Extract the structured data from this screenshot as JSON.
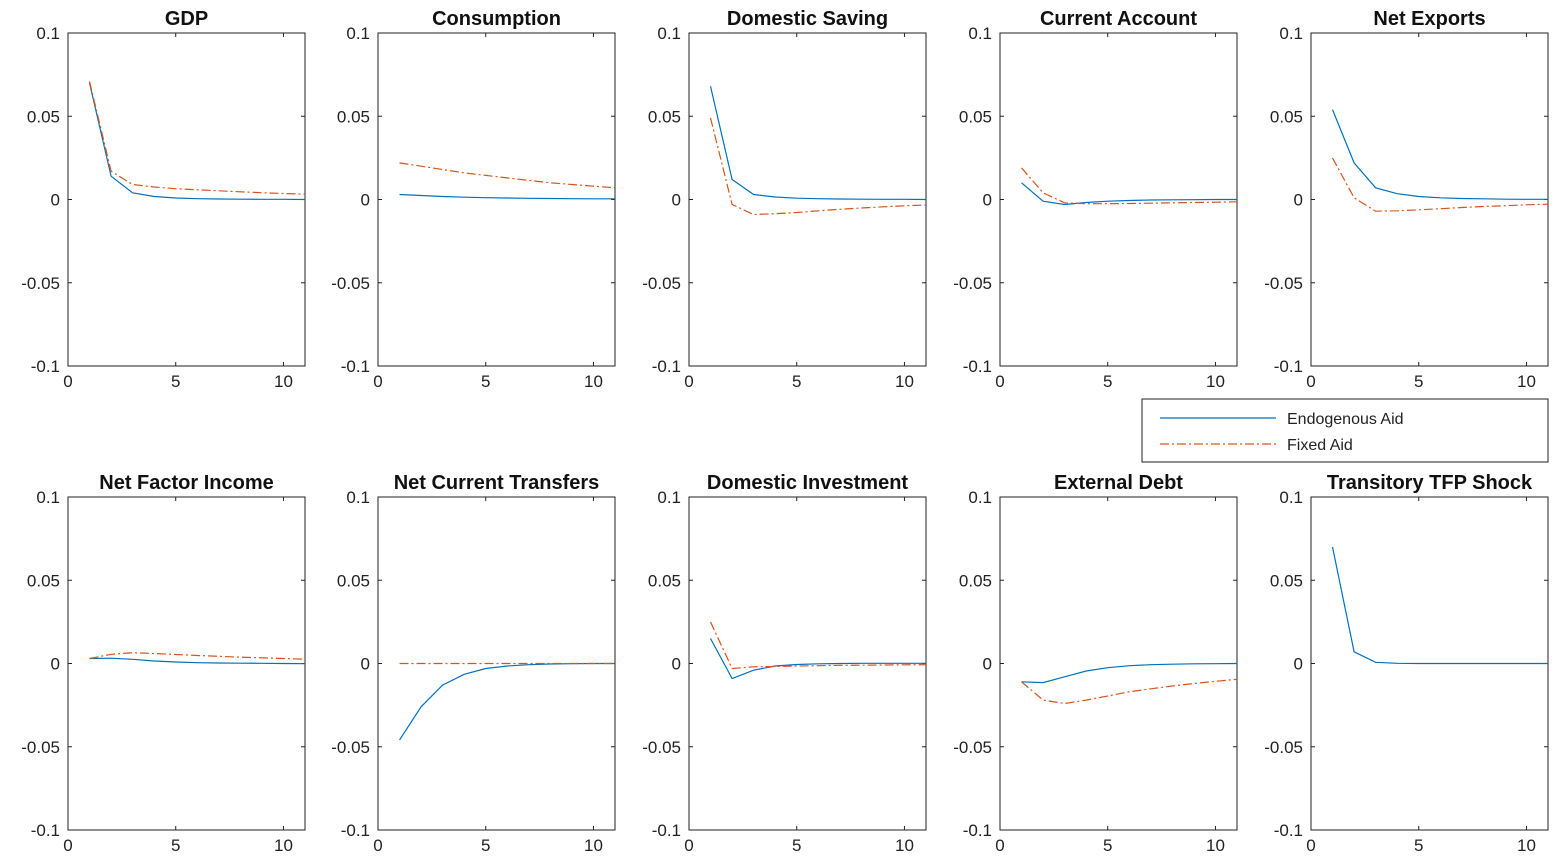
{
  "chart_data": [
    {
      "type": "line",
      "title": "GDP",
      "x": [
        1,
        2,
        3,
        4,
        5,
        6,
        7,
        8,
        9,
        10,
        11
      ],
      "xlim": [
        0,
        11
      ],
      "ylim": [
        -0.1,
        0.1
      ],
      "xticks": [
        0,
        5,
        10
      ],
      "yticks": [
        0.1,
        0.05,
        0,
        -0.05,
        -0.1
      ],
      "xtick_labels": [
        "0",
        "5",
        "10"
      ],
      "ytick_labels": [
        "0.1",
        "0.05",
        "0",
        "-0.05",
        "-0.1"
      ],
      "series": [
        {
          "name": "Endogenous Aid",
          "values": [
            0.07,
            0.014,
            0.004,
            0.0018,
            0.0009,
            0.0005,
            0.0003,
            0.0002,
            0.0001,
            0.0001,
            0.0
          ]
        },
        {
          "name": "Fixed Aid",
          "values": [
            0.071,
            0.017,
            0.009,
            0.0075,
            0.0065,
            0.0058,
            0.0052,
            0.0046,
            0.0041,
            0.0036,
            0.0032
          ]
        }
      ]
    },
    {
      "type": "line",
      "title": "Consumption",
      "x": [
        1,
        2,
        3,
        4,
        5,
        6,
        7,
        8,
        9,
        10,
        11
      ],
      "xlim": [
        0,
        11
      ],
      "ylim": [
        -0.1,
        0.1
      ],
      "xticks": [
        0,
        5,
        10
      ],
      "yticks": [
        0.1,
        0.05,
        0,
        -0.05,
        -0.1
      ],
      "xtick_labels": [
        "0",
        "5",
        "10"
      ],
      "ytick_labels": [
        "0.1",
        "0.05",
        "0",
        "-0.05",
        "-0.1"
      ],
      "series": [
        {
          "name": "Endogenous Aid",
          "values": [
            0.003,
            0.0024,
            0.0018,
            0.0014,
            0.0011,
            0.0009,
            0.0007,
            0.0006,
            0.0005,
            0.0004,
            0.0004
          ]
        },
        {
          "name": "Fixed Aid",
          "values": [
            0.022,
            0.02,
            0.018,
            0.016,
            0.0145,
            0.013,
            0.0115,
            0.01,
            0.009,
            0.008,
            0.007
          ]
        }
      ]
    },
    {
      "type": "line",
      "title": "Domestic Saving",
      "x": [
        1,
        2,
        3,
        4,
        5,
        6,
        7,
        8,
        9,
        10,
        11
      ],
      "xlim": [
        0,
        11
      ],
      "ylim": [
        -0.1,
        0.1
      ],
      "xticks": [
        0,
        5,
        10
      ],
      "yticks": [
        0.1,
        0.05,
        0,
        -0.05,
        -0.1
      ],
      "xtick_labels": [
        "0",
        "5",
        "10"
      ],
      "ytick_labels": [
        "0.1",
        "0.05",
        "0",
        "-0.05",
        "-0.1"
      ],
      "series": [
        {
          "name": "Endogenous Aid",
          "values": [
            0.068,
            0.012,
            0.003,
            0.0015,
            0.0008,
            0.0005,
            0.0003,
            0.0002,
            0.0001,
            0.0001,
            0.0
          ]
        },
        {
          "name": "Fixed Aid",
          "values": [
            0.049,
            -0.003,
            -0.009,
            -0.0085,
            -0.0078,
            -0.0068,
            -0.0059,
            -0.0051,
            -0.0044,
            -0.0038,
            -0.0033
          ]
        }
      ]
    },
    {
      "type": "line",
      "title": "Current Account",
      "x": [
        1,
        2,
        3,
        4,
        5,
        6,
        7,
        8,
        9,
        10,
        11
      ],
      "xlim": [
        0,
        11
      ],
      "ylim": [
        -0.1,
        0.1
      ],
      "xticks": [
        0,
        5,
        10
      ],
      "yticks": [
        0.1,
        0.05,
        0,
        -0.05,
        -0.1
      ],
      "xtick_labels": [
        "0",
        "5",
        "10"
      ],
      "ytick_labels": [
        "0.1",
        "0.05",
        "0",
        "-0.05",
        "-0.1"
      ],
      "series": [
        {
          "name": "Endogenous Aid",
          "values": [
            0.01,
            -0.001,
            -0.003,
            -0.0018,
            -0.001,
            -0.0006,
            -0.0003,
            -0.0002,
            -0.0001,
            0.0,
            0.0
          ]
        },
        {
          "name": "Fixed Aid",
          "values": [
            0.019,
            0.004,
            -0.002,
            -0.0025,
            -0.0025,
            -0.0024,
            -0.0022,
            -0.002,
            -0.0018,
            -0.0016,
            -0.0014
          ]
        }
      ]
    },
    {
      "type": "line",
      "title": "Net Exports",
      "x": [
        1,
        2,
        3,
        4,
        5,
        6,
        7,
        8,
        9,
        10,
        11
      ],
      "xlim": [
        0,
        11
      ],
      "ylim": [
        -0.1,
        0.1
      ],
      "xticks": [
        0,
        5,
        10
      ],
      "yticks": [
        0.1,
        0.05,
        0,
        -0.05,
        -0.1
      ],
      "xtick_labels": [
        "0",
        "5",
        "10"
      ],
      "ytick_labels": [
        "0.1",
        "0.05",
        "0",
        "-0.05",
        "-0.1"
      ],
      "series": [
        {
          "name": "Endogenous Aid",
          "values": [
            0.054,
            0.022,
            0.007,
            0.0035,
            0.0018,
            0.001,
            0.0006,
            0.0004,
            0.0002,
            0.0001,
            0.0001
          ]
        },
        {
          "name": "Fixed Aid",
          "values": [
            0.025,
            0.001,
            -0.007,
            -0.0068,
            -0.0062,
            -0.0055,
            -0.0048,
            -0.0042,
            -0.0037,
            -0.0032,
            -0.0028
          ]
        }
      ]
    },
    {
      "type": "line",
      "title": "Net Factor Income",
      "x": [
        1,
        2,
        3,
        4,
        5,
        6,
        7,
        8,
        9,
        10,
        11
      ],
      "xlim": [
        0,
        11
      ],
      "ylim": [
        -0.1,
        0.1
      ],
      "xticks": [
        0,
        5,
        10
      ],
      "yticks": [
        0.1,
        0.05,
        0,
        -0.05,
        -0.1
      ],
      "xtick_labels": [
        "0",
        "5",
        "10"
      ],
      "ytick_labels": [
        "0.1",
        "0.05",
        "0",
        "-0.05",
        "-0.1"
      ],
      "series": [
        {
          "name": "Endogenous Aid",
          "values": [
            0.003,
            0.0032,
            0.0025,
            0.0015,
            0.0009,
            0.0005,
            0.0003,
            0.0002,
            0.0001,
            0.0,
            -0.0001
          ]
        },
        {
          "name": "Fixed Aid",
          "values": [
            0.003,
            0.0055,
            0.0065,
            0.006,
            0.0054,
            0.0048,
            0.0043,
            0.0038,
            0.0034,
            0.003,
            0.0026
          ]
        }
      ]
    },
    {
      "type": "line",
      "title": "Net Current Transfers",
      "x": [
        1,
        2,
        3,
        4,
        5,
        6,
        7,
        8,
        9,
        10,
        11
      ],
      "xlim": [
        0,
        11
      ],
      "ylim": [
        -0.1,
        0.1
      ],
      "xticks": [
        0,
        5,
        10
      ],
      "yticks": [
        0.1,
        0.05,
        0,
        -0.05,
        -0.1
      ],
      "xtick_labels": [
        "0",
        "5",
        "10"
      ],
      "ytick_labels": [
        "0.1",
        "0.05",
        "0",
        "-0.05",
        "-0.1"
      ],
      "series": [
        {
          "name": "Endogenous Aid",
          "values": [
            -0.046,
            -0.026,
            -0.013,
            -0.0065,
            -0.003,
            -0.0015,
            -0.0007,
            -0.0003,
            -0.0001,
            0.0,
            0.0
          ]
        },
        {
          "name": "Fixed Aid",
          "values": [
            0.0,
            0.0,
            0.0,
            0.0,
            0.0,
            0.0,
            0.0,
            0.0,
            0.0,
            0.0,
            0.0
          ]
        }
      ]
    },
    {
      "type": "line",
      "title": "Domestic Investment",
      "x": [
        1,
        2,
        3,
        4,
        5,
        6,
        7,
        8,
        9,
        10,
        11
      ],
      "xlim": [
        0,
        11
      ],
      "ylim": [
        -0.1,
        0.1
      ],
      "xticks": [
        0,
        5,
        10
      ],
      "yticks": [
        0.1,
        0.05,
        0,
        -0.05,
        -0.1
      ],
      "xtick_labels": [
        "0",
        "5",
        "10"
      ],
      "ytick_labels": [
        "0.1",
        "0.05",
        "0",
        "-0.05",
        "-0.1"
      ],
      "series": [
        {
          "name": "Endogenous Aid",
          "values": [
            0.015,
            -0.009,
            -0.004,
            -0.0015,
            -0.0006,
            -0.0002,
            0.0,
            0.0001,
            0.0001,
            0.0001,
            0.0001
          ]
        },
        {
          "name": "Fixed Aid",
          "values": [
            0.025,
            -0.003,
            -0.002,
            -0.0018,
            -0.0015,
            -0.0013,
            -0.0011,
            -0.001,
            -0.0009,
            -0.0008,
            -0.0007
          ]
        }
      ]
    },
    {
      "type": "line",
      "title": "External Debt",
      "x": [
        1,
        2,
        3,
        4,
        5,
        6,
        7,
        8,
        9,
        10,
        11
      ],
      "xlim": [
        0,
        11
      ],
      "ylim": [
        -0.1,
        0.1
      ],
      "xticks": [
        0,
        5,
        10
      ],
      "yticks": [
        0.1,
        0.05,
        0,
        -0.05,
        -0.1
      ],
      "xtick_labels": [
        "0",
        "5",
        "10"
      ],
      "ytick_labels": [
        "0.1",
        "0.05",
        "0",
        "-0.05",
        "-0.1"
      ],
      "series": [
        {
          "name": "Endogenous Aid",
          "values": [
            -0.011,
            -0.0115,
            -0.008,
            -0.0045,
            -0.0025,
            -0.0013,
            -0.0007,
            -0.0004,
            -0.0002,
            -0.0001,
            0.0
          ]
        },
        {
          "name": "Fixed Aid",
          "values": [
            -0.011,
            -0.022,
            -0.024,
            -0.022,
            -0.0195,
            -0.017,
            -0.0152,
            -0.0135,
            -0.012,
            -0.0107,
            -0.0095
          ]
        }
      ]
    },
    {
      "type": "line",
      "title": "Transitory TFP Shock",
      "x": [
        1,
        2,
        3,
        4,
        5,
        6,
        7,
        8,
        9,
        10,
        11
      ],
      "xlim": [
        0,
        11
      ],
      "ylim": [
        -0.1,
        0.1
      ],
      "xticks": [
        0,
        5,
        10
      ],
      "yticks": [
        0.1,
        0.05,
        0,
        -0.05,
        -0.1
      ],
      "xtick_labels": [
        "0",
        "5",
        "10"
      ],
      "ytick_labels": [
        "0.1",
        "0.05",
        "0",
        "-0.05",
        "-0.1"
      ],
      "series": [
        {
          "name": "Endogenous Aid",
          "values": [
            0.07,
            0.007,
            0.0007,
            0.0001,
            0.0,
            0.0,
            0.0,
            0.0,
            0.0,
            0.0,
            0.0
          ]
        }
      ]
    }
  ],
  "legend": {
    "placement": "between-rows-right",
    "entries": [
      {
        "label": "Endogenous Aid",
        "color": "#0072BD",
        "style": "solid"
      },
      {
        "label": "Fixed Aid",
        "color": "#D95319",
        "style": "dash-dot"
      }
    ]
  },
  "colors": {
    "series_1": "#0072BD",
    "series_2": "#D95319",
    "axis": "#222222"
  }
}
